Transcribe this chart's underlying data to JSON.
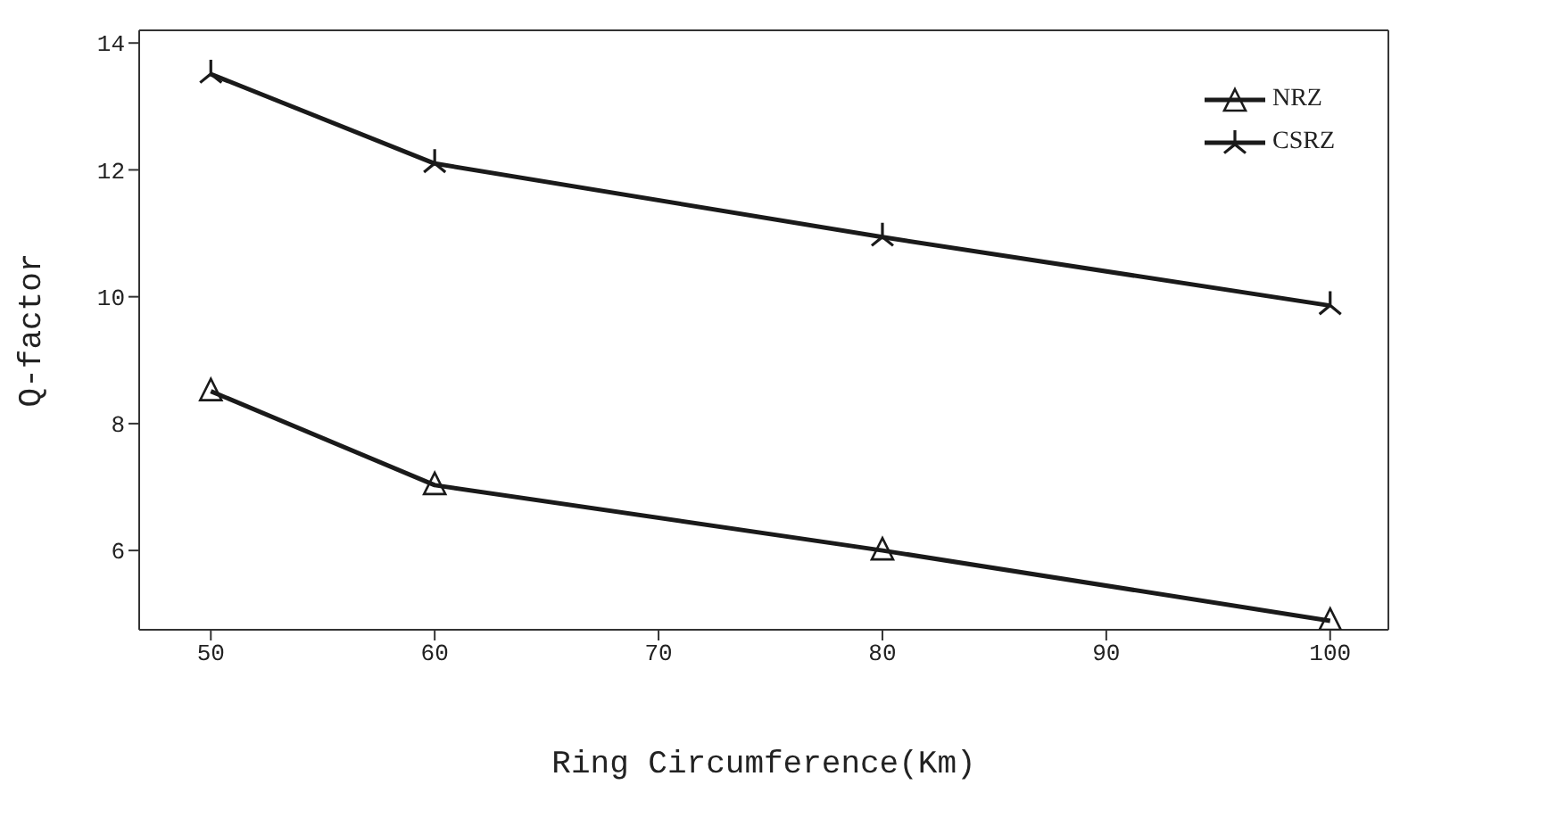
{
  "chart_data": {
    "type": "line",
    "xlabel": "Ring Circumference(Km)",
    "ylabel": "Q-factor",
    "x": [
      50,
      60,
      80,
      100
    ],
    "series": [
      {
        "name": "NRZ",
        "color": "#1a1a1a",
        "marker": "triangle",
        "values": [
          8.51,
          7.03,
          6.0,
          4.89
        ]
      },
      {
        "name": "CSRZ",
        "color": "#1a1a1a",
        "marker": "star",
        "values": [
          13.51,
          12.1,
          10.94,
          9.86
        ]
      }
    ],
    "xlim": [
      46.8,
      102.6
    ],
    "xticks": [
      50,
      60,
      70,
      80,
      90,
      100
    ],
    "ylim": [
      4.75,
      14.2
    ],
    "yticks": [
      6,
      8,
      10,
      12,
      14
    ],
    "grid": false,
    "legend": "top right",
    "line_style": "solid"
  }
}
